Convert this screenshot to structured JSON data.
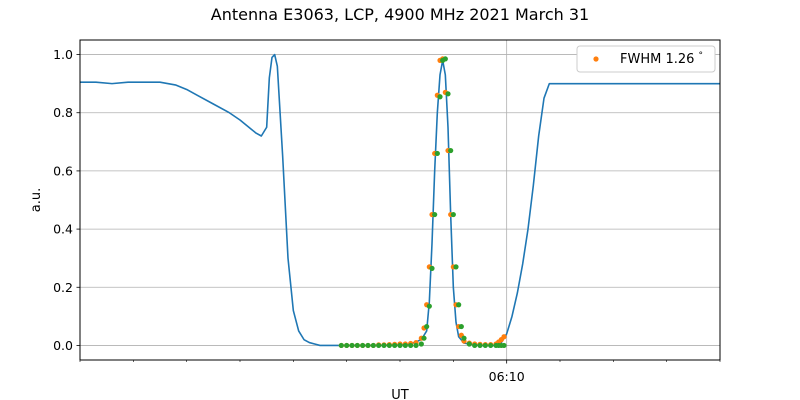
{
  "chart_data": {
    "type": "line",
    "title": "Antenna E3063, LCP, 4900 MHz 2021 March 31",
    "xlabel": "UT",
    "ylabel": "a.u.",
    "xlim": [
      0,
      12
    ],
    "ylim": [
      -0.05,
      1.05
    ],
    "grid": true,
    "legend_position": "top-right",
    "x_major_ticks": [
      {
        "x": 8,
        "label": "06:10"
      }
    ],
    "x_minor_ticks": [
      0,
      1,
      2,
      3,
      4,
      5,
      6,
      7,
      9,
      10,
      11,
      12
    ],
    "y_ticks": [
      0.0,
      0.2,
      0.4,
      0.6,
      0.8,
      1.0
    ],
    "y_tick_labels": [
      "0.0",
      "0.2",
      "0.4",
      "0.6",
      "0.8",
      "1.0"
    ],
    "series": [
      {
        "style": "line",
        "color": "#1f77b4",
        "x": [
          0,
          0.3,
          0.6,
          0.9,
          1.2,
          1.5,
          1.8,
          2.0,
          2.2,
          2.5,
          2.8,
          3.0,
          3.1,
          3.2,
          3.3,
          3.4,
          3.5,
          3.55,
          3.6,
          3.65,
          3.7,
          3.8,
          3.9,
          4.0,
          4.1,
          4.2,
          4.3,
          4.4,
          4.5,
          4.7,
          4.9,
          5.0,
          5.5,
          6.0,
          6.2,
          6.4,
          6.5,
          6.55,
          6.6,
          6.65,
          6.7,
          6.75,
          6.8,
          6.85,
          6.9,
          6.95,
          7.0,
          7.05,
          7.1,
          7.2,
          7.5,
          7.8,
          7.9,
          8.0,
          8.1,
          8.2,
          8.3,
          8.4,
          8.5,
          8.6,
          8.7,
          8.8,
          9.0,
          9.5,
          10.0,
          10.5,
          11.0,
          11.5,
          12.0
        ],
        "y": [
          0.905,
          0.905,
          0.9,
          0.905,
          0.905,
          0.905,
          0.895,
          0.88,
          0.86,
          0.83,
          0.8,
          0.775,
          0.76,
          0.745,
          0.73,
          0.72,
          0.75,
          0.92,
          0.99,
          1.0,
          0.96,
          0.65,
          0.3,
          0.12,
          0.05,
          0.02,
          0.01,
          0.005,
          0.0,
          0.0,
          0.0,
          0.0,
          0.0,
          0.002,
          0.005,
          0.02,
          0.05,
          0.15,
          0.35,
          0.6,
          0.8,
          0.93,
          0.98,
          0.93,
          0.75,
          0.45,
          0.2,
          0.08,
          0.03,
          0.008,
          0.0,
          0.0,
          0.01,
          0.04,
          0.1,
          0.18,
          0.28,
          0.4,
          0.55,
          0.72,
          0.85,
          0.9,
          0.9,
          0.9,
          0.9,
          0.9,
          0.9,
          0.9,
          0.9
        ]
      },
      {
        "name": "FWHM 1.26$^\\circ$",
        "style": "scatter",
        "color": "#ff7f0e",
        "x": [
          4.9,
          5.0,
          5.1,
          5.2,
          5.3,
          5.4,
          5.5,
          5.6,
          5.7,
          5.8,
          5.9,
          6.0,
          6.1,
          6.2,
          6.3,
          6.4,
          6.45,
          6.5,
          6.55,
          6.6,
          6.65,
          6.7,
          6.75,
          6.8,
          6.85,
          6.9,
          6.95,
          7.0,
          7.05,
          7.1,
          7.15,
          7.2,
          7.3,
          7.4,
          7.5,
          7.6,
          7.7,
          7.8,
          7.85,
          7.9,
          7.95
        ],
        "y": [
          0.0,
          0.0,
          0.0,
          0.0,
          0.0,
          0.0,
          0.0,
          0.002,
          0.002,
          0.003,
          0.004,
          0.005,
          0.005,
          0.007,
          0.01,
          0.025,
          0.06,
          0.14,
          0.27,
          0.45,
          0.66,
          0.86,
          0.98,
          0.985,
          0.87,
          0.67,
          0.45,
          0.27,
          0.14,
          0.065,
          0.035,
          0.015,
          0.008,
          0.005,
          0.004,
          0.003,
          0.003,
          0.005,
          0.012,
          0.02,
          0.03
        ]
      },
      {
        "style": "scatter",
        "color": "#2ca02c",
        "x": [
          4.9,
          5.0,
          5.1,
          5.2,
          5.3,
          5.4,
          5.5,
          5.6,
          5.7,
          5.8,
          5.9,
          6.0,
          6.1,
          6.2,
          6.3,
          6.4,
          6.45,
          6.5,
          6.55,
          6.6,
          6.65,
          6.7,
          6.75,
          6.8,
          6.85,
          6.9,
          6.95,
          7.0,
          7.05,
          7.1,
          7.15,
          7.2,
          7.3,
          7.4,
          7.5,
          7.6,
          7.7,
          7.8,
          7.85,
          7.9,
          7.95
        ],
        "y": [
          0.0,
          0.0,
          0.0,
          0.0,
          0.0,
          0.0,
          0.0,
          0.0,
          0.0,
          0.0,
          0.0,
          0.0,
          0.0,
          0.0,
          0.0,
          0.005,
          0.025,
          0.065,
          0.135,
          0.265,
          0.45,
          0.66,
          0.855,
          0.98,
          0.985,
          0.865,
          0.67,
          0.45,
          0.27,
          0.14,
          0.065,
          0.025,
          0.005,
          0.0,
          0.0,
          0.0,
          0.0,
          0.0,
          0.0,
          0.0,
          0.0
        ]
      }
    ]
  }
}
